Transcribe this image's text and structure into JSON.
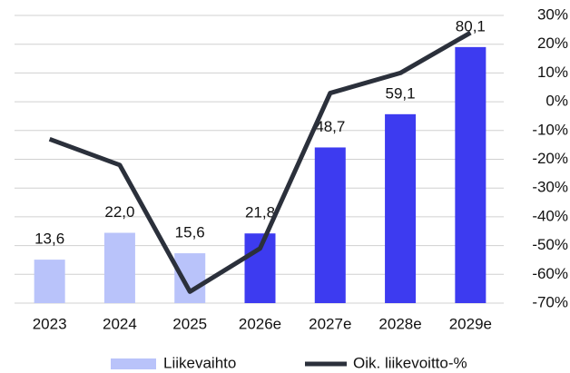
{
  "chart_data": {
    "type": "bar_line",
    "categories": [
      "2023",
      "2024",
      "2025",
      "2026e",
      "2027e",
      "2028e",
      "2029e"
    ],
    "series": [
      {
        "name": "Liikevaihto",
        "type": "bar",
        "color": "#b9c3fa",
        "colors": [
          "#b9c3fa",
          "#b9c3fa",
          "#b9c3fa",
          "#3d3bf0",
          "#3d3bf0",
          "#3d3bf0",
          "#3d3bf0"
        ],
        "values": [
          13.6,
          22.0,
          15.6,
          21.8,
          48.7,
          59.1,
          80.1
        ],
        "value_labels": [
          "13,6",
          "22,0",
          "15,6",
          "21,8",
          "48,7",
          "59,1",
          "80,1"
        ]
      },
      {
        "name": "Oik. liikevoitto-%",
        "type": "line",
        "axis": "y2",
        "color": "#2b303b",
        "values": [
          -13,
          -22,
          -66,
          -51,
          3,
          10,
          24
        ]
      }
    ],
    "ylim": [
      0,
      90
    ],
    "y2lim": [
      -70,
      30
    ],
    "y2ticks": [
      {
        "value": 30,
        "label": "30%"
      },
      {
        "value": 20,
        "label": "20%"
      },
      {
        "value": 10,
        "label": "10%"
      },
      {
        "value": 0,
        "label": "0%"
      },
      {
        "value": -10,
        "label": "-10%"
      },
      {
        "value": -20,
        "label": "-20%"
      },
      {
        "value": -30,
        "label": "-30%"
      },
      {
        "value": -40,
        "label": "-40%"
      },
      {
        "value": -50,
        "label": "-50%"
      },
      {
        "value": -60,
        "label": "-60%"
      },
      {
        "value": -70,
        "label": "-70%"
      }
    ],
    "grid": true,
    "legend": "bottom"
  }
}
